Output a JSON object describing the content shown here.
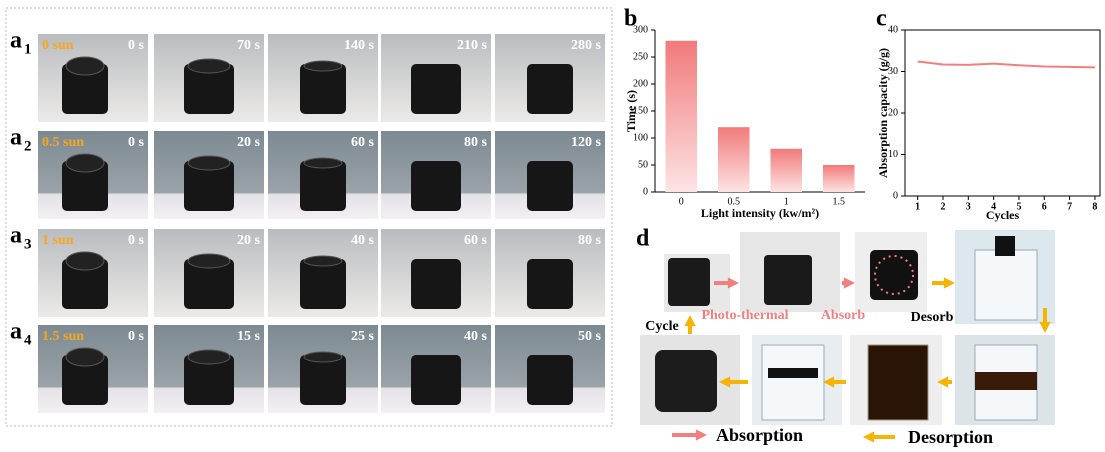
{
  "panel_a": {
    "rows": [
      {
        "letter": "a",
        "sub": "1",
        "condition": "0 sun",
        "times": [
          "0 s",
          "70 s",
          "140 s",
          "210 s",
          "280 s"
        ]
      },
      {
        "letter": "a",
        "sub": "2",
        "condition": "0.5 sun",
        "times": [
          "0 s",
          "20 s",
          "60 s",
          "80 s",
          "120 s"
        ]
      },
      {
        "letter": "a",
        "sub": "3",
        "condition": "1 sun",
        "times": [
          "0 s",
          "20 s",
          "40 s",
          "60 s",
          "80 s"
        ]
      },
      {
        "letter": "a",
        "sub": "4",
        "condition": "1.5 sun",
        "times": [
          "0 s",
          "15 s",
          "25 s",
          "40 s",
          "50 s"
        ]
      }
    ]
  },
  "chart_data": [
    {
      "panel": "b",
      "type": "bar",
      "x_label": "Light intensity (kw/m²)",
      "y_label": "Time (s)",
      "categories": [
        "0",
        "0.5",
        "1",
        "1.5"
      ],
      "values": [
        280,
        120,
        80,
        50
      ],
      "color": "#f27a7a",
      "ylim": [
        0,
        300
      ],
      "yticks": [
        0,
        50,
        100,
        150,
        200,
        250,
        300
      ]
    },
    {
      "panel": "c",
      "type": "line",
      "x_label": "Cycles",
      "y_label": "Absorption capacity (g/g)",
      "x": [
        1,
        2,
        3,
        4,
        5,
        6,
        7,
        8
      ],
      "values": [
        32.4,
        31.7,
        31.6,
        31.9,
        31.5,
        31.2,
        31.1,
        31.0
      ],
      "color": "#f08080",
      "xlim": [
        0.5,
        8.2
      ],
      "xticks": [
        1,
        2,
        3,
        4,
        5,
        6,
        7,
        8
      ],
      "ylim": [
        0,
        40
      ],
      "yticks": [
        0,
        10,
        20,
        30,
        40
      ]
    }
  ],
  "panel_d": {
    "letter": "d",
    "steps": [
      "Photo-thermal",
      "Absorb",
      "Desorb",
      "Cycle"
    ],
    "legend": [
      "Absorption",
      "Desorption"
    ]
  }
}
